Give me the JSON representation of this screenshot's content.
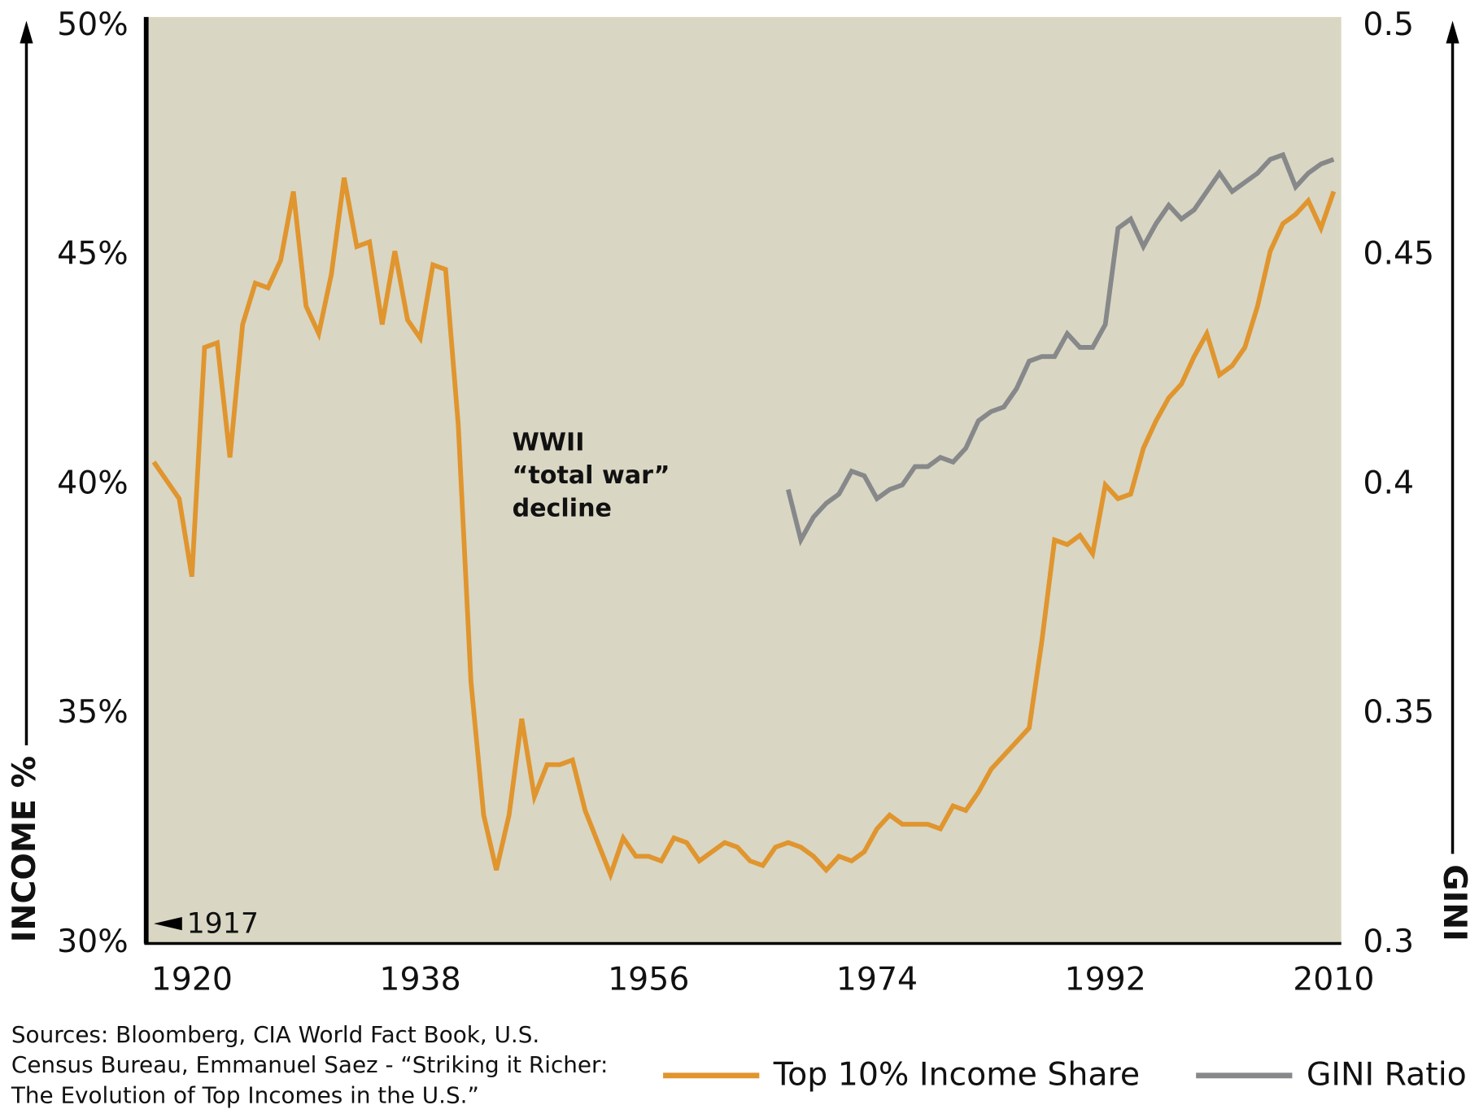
{
  "chart_data": {
    "type": "line",
    "x": [
      1917,
      1918,
      1919,
      1920,
      1921,
      1922,
      1923,
      1924,
      1925,
      1926,
      1927,
      1928,
      1929,
      1930,
      1931,
      1932,
      1933,
      1934,
      1935,
      1936,
      1937,
      1938,
      1939,
      1940,
      1941,
      1942,
      1943,
      1944,
      1945,
      1946,
      1947,
      1948,
      1949,
      1950,
      1951,
      1952,
      1953,
      1954,
      1955,
      1956,
      1957,
      1958,
      1959,
      1960,
      1961,
      1962,
      1963,
      1964,
      1965,
      1966,
      1967,
      1968,
      1969,
      1970,
      1971,
      1972,
      1973,
      1974,
      1975,
      1976,
      1977,
      1978,
      1979,
      1980,
      1981,
      1982,
      1983,
      1984,
      1985,
      1986,
      1987,
      1988,
      1989,
      1990,
      1991,
      1992,
      1993,
      1994,
      1995,
      1996,
      1997,
      1998,
      1999,
      2000,
      2001,
      2002,
      2003,
      2004,
      2005,
      2006,
      2007,
      2008,
      2009,
      2010
    ],
    "xlim": [
      1916.4,
      2010.6
    ],
    "xticks": [
      1920,
      1938,
      1956,
      1974,
      1992,
      2010
    ],
    "ylim": [
      30,
      50
    ],
    "yticks": [
      {
        "value": 30,
        "label": "30%"
      },
      {
        "value": 35,
        "label": "35%"
      },
      {
        "value": 40,
        "label": "40%"
      },
      {
        "value": 45,
        "label": "45%"
      },
      {
        "value": 50,
        "label": "50%"
      }
    ],
    "y2lim": [
      0.3,
      0.5
    ],
    "y2ticks": [
      0.3,
      0.35,
      0.4,
      0.45,
      0.5
    ],
    "ylabel": "INCOME %",
    "y2label": "GINI",
    "series": [
      {
        "name": "Top 10% Income Share",
        "color": "#e0952e",
        "values": [
          40.5,
          40.1,
          39.7,
          38.0,
          43.0,
          43.1,
          40.6,
          43.5,
          44.4,
          44.3,
          44.9,
          46.4,
          43.9,
          43.3,
          44.6,
          46.7,
          45.2,
          45.3,
          43.5,
          45.1,
          43.6,
          43.2,
          44.8,
          44.7,
          41.3,
          35.7,
          32.8,
          31.6,
          32.8,
          34.9,
          33.2,
          33.9,
          33.9,
          34.0,
          32.9,
          32.2,
          31.5,
          32.3,
          31.9,
          31.9,
          31.8,
          32.3,
          32.2,
          31.8,
          32.0,
          32.2,
          32.1,
          31.8,
          31.7,
          32.1,
          32.2,
          32.1,
          31.9,
          31.6,
          31.9,
          31.8,
          32.0,
          32.5,
          32.8,
          32.6,
          32.6,
          32.6,
          32.5,
          33.0,
          32.9,
          33.3,
          33.8,
          34.1,
          34.4,
          34.7,
          36.6,
          38.8,
          38.7,
          38.9,
          38.5,
          40.0,
          39.7,
          39.8,
          40.8,
          41.4,
          41.9,
          42.2,
          42.8,
          43.3,
          42.4,
          42.6,
          43.0,
          43.9,
          45.1,
          45.7,
          45.9,
          46.2,
          45.6,
          46.4
        ]
      },
      {
        "name": "GINI Ratio",
        "color": "#87888a",
        "axis": "y2",
        "values": [
          null,
          null,
          null,
          null,
          null,
          null,
          null,
          null,
          null,
          null,
          null,
          null,
          null,
          null,
          null,
          null,
          null,
          null,
          null,
          null,
          null,
          null,
          null,
          null,
          null,
          null,
          null,
          null,
          null,
          null,
          null,
          null,
          null,
          null,
          null,
          null,
          null,
          null,
          null,
          null,
          null,
          null,
          null,
          null,
          null,
          null,
          null,
          null,
          null,
          null,
          0.399,
          0.388,
          0.393,
          0.396,
          0.398,
          0.403,
          0.402,
          0.397,
          0.399,
          0.4,
          0.404,
          0.404,
          0.406,
          0.405,
          0.408,
          0.414,
          0.416,
          0.417,
          0.421,
          0.427,
          0.428,
          0.428,
          0.433,
          0.43,
          0.43,
          0.435,
          0.456,
          0.458,
          0.452,
          0.457,
          0.461,
          0.458,
          0.46,
          0.464,
          0.468,
          0.464,
          0.466,
          0.468,
          0.471,
          0.472,
          0.465,
          0.468,
          0.47,
          0.471
        ]
      }
    ],
    "annotation": {
      "lines": [
        "WWII",
        "“total war”",
        "decline"
      ],
      "color": "#f02a10"
    },
    "start_marker": "1917",
    "sources": [
      "Sources:  Bloomberg, CIA World Fact Book, U.S.",
      "Census Bureau, Emmanuel Saez - “Striking it Richer:",
      "The Evolution of Top Incomes in the U.S.”"
    ],
    "background": "#d9d6c3"
  }
}
